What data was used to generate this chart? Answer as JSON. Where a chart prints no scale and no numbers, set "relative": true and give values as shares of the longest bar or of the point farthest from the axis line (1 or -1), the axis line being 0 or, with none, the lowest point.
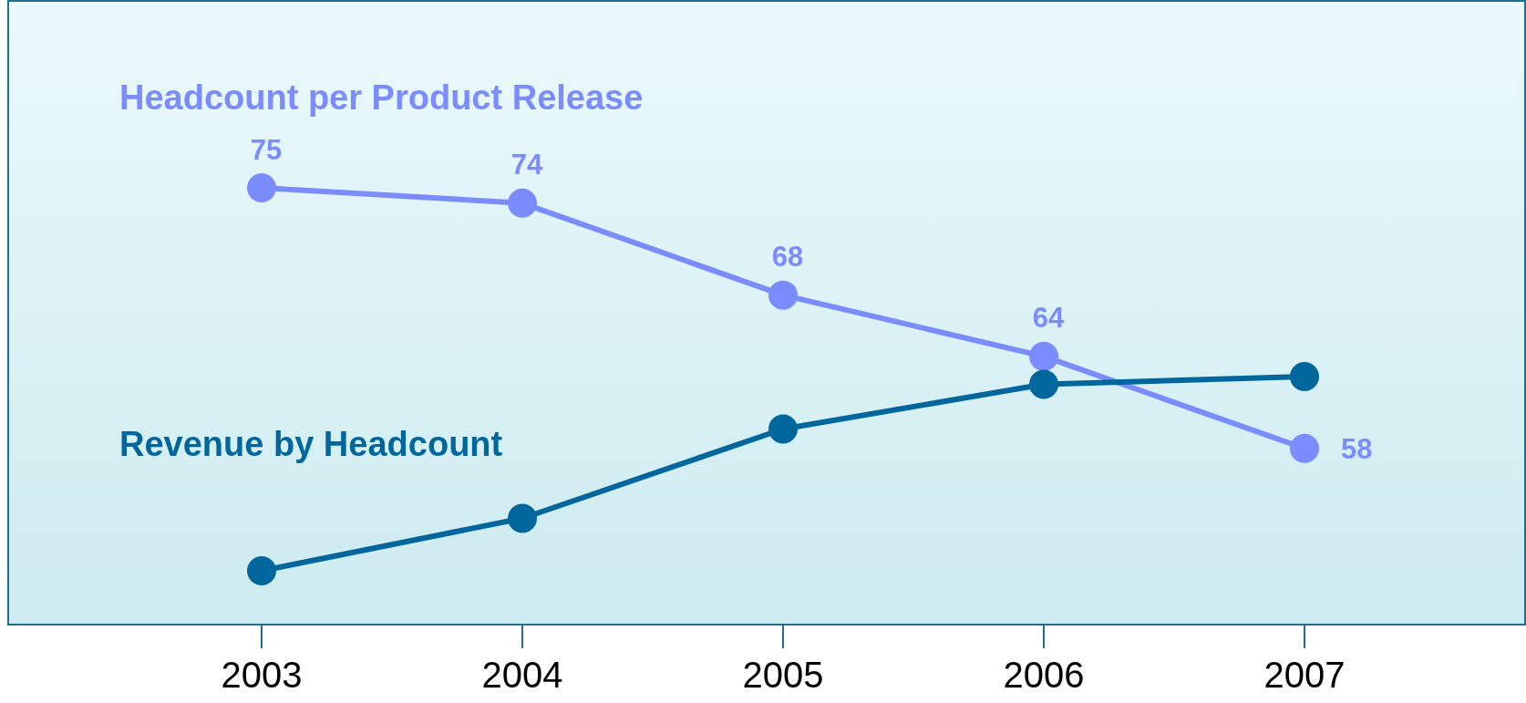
{
  "chart_data": [
    {
      "type": "line",
      "categories": [
        "2003",
        "2004",
        "2005",
        "2006",
        "2007"
      ],
      "legend": false,
      "grid": false,
      "marker": "circle",
      "line_style": "solid",
      "data_labels": true,
      "series": [
        {
          "name": "Headcount per Product Release",
          "color": "#7b8cff",
          "values": [
            75,
            74,
            68,
            64,
            58
          ]
        }
      ]
    },
    {
      "type": "line",
      "relative": true,
      "categories": [
        "2003",
        "2004",
        "2005",
        "2006",
        "2007"
      ],
      "tick_labels": false,
      "legend": false,
      "grid": false,
      "marker": "circle",
      "line_style": "solid",
      "series": [
        {
          "name": "Revenue by Headcount",
          "color": "#00669b",
          "values": [
            0,
            0.27,
            0.73,
            0.96,
            1
          ]
        }
      ]
    }
  ]
}
